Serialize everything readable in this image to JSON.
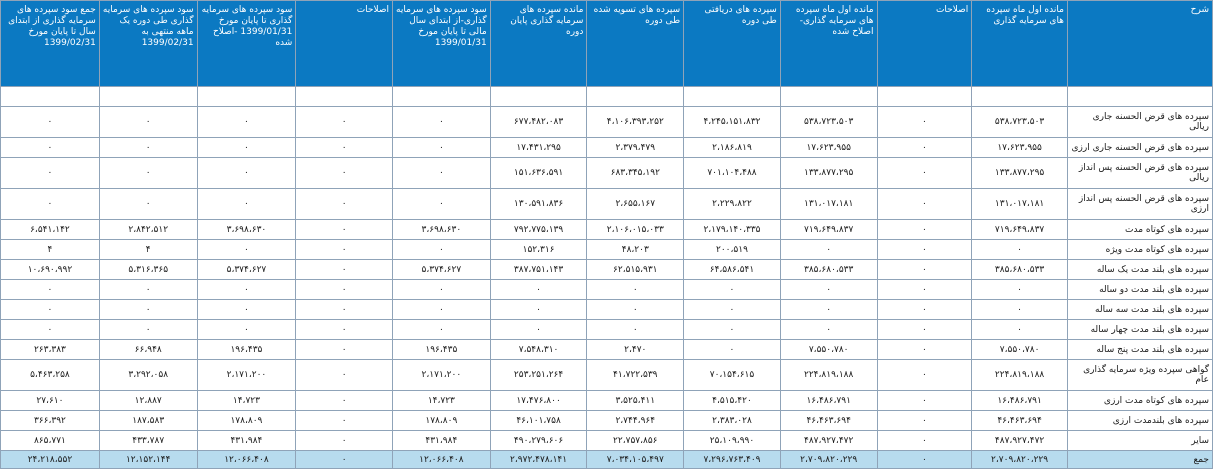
{
  "headers": [
    "شرح",
    "مانده اول ماه سپرده های سرمایه گذاری",
    "اصلاحات",
    "مانده اول ماه سپرده های سرمایه گذاری- اصلاح شده",
    "سپرده های دریافتی طی دوره",
    "سپرده های تسویه شده طی دوره",
    "مانده سپرده های سرمایه گذاری پایان دوره",
    "سود سپرده های سرمایه گذاری-از ابتدای سال مالی تا پایان مورخ 1399/01/31",
    "اصلاحات",
    "سود سپرده های سرمایه گذاری تا پایان مورخ 1399/01/31 -اصلاح شده",
    "سود سپرده های سرمایه گذاری طی دوره یک ماهه منتهی به 1399/02/31",
    "جمع سود سپرده های سرمایه گذاری از ابتدای سال تا پایان مورخ 1399/02/31"
  ],
  "rows": [
    [
      "سپرده های قرض الحسنه جاری ریالی",
      "۵۳۸،۷۲۳،۵۰۳",
      "۰",
      "۵۳۸،۷۲۳،۵۰۳",
      "۴،۲۴۵،۱۵۱،۸۳۲",
      "۴،۱۰۶،۳۹۳،۲۵۲",
      "۶۷۷،۴۸۲،۰۸۳",
      "۰",
      "۰",
      "۰",
      "۰",
      "۰"
    ],
    [
      "سپرده های قرض الحسنه جاری ارزی",
      "۱۷،۶۲۳،۹۵۵",
      "۰",
      "۱۷،۶۲۳،۹۵۵",
      "۲،۱۸۶،۸۱۹",
      "۲،۳۷۹،۴۷۹",
      "۱۷،۴۳۱،۲۹۵",
      "۰",
      "۰",
      "۰",
      "۰",
      "۰"
    ],
    [
      "سپرده های قرض الحسنه پس انداز ریالی",
      "۱۳۳،۸۷۷،۲۹۵",
      "۰",
      "۱۳۳،۸۷۷،۲۹۵",
      "۷۰۱،۱۰۴،۴۸۸",
      "۶۸۳،۳۴۵،۱۹۲",
      "۱۵۱،۶۳۶،۵۹۱",
      "۰",
      "۰",
      "۰",
      "۰",
      "۰"
    ],
    [
      "سپرده های قرض الحسنه پس انداز ارزی",
      "۱۳۱،۰۱۷،۱۸۱",
      "۰",
      "۱۳۱،۰۱۷،۱۸۱",
      "۲،۲۲۹،۸۲۲",
      "۲،۶۵۵،۱۶۷",
      "۱۳۰،۵۹۱،۸۳۶",
      "۰",
      "۰",
      "۰",
      "۰",
      "۰"
    ],
    [
      "سپرده های کوتاه مدت",
      "۷۱۹،۶۴۹،۸۳۷",
      "۰",
      "۷۱۹،۶۴۹،۸۳۷",
      "۲،۱۷۹،۱۴۰،۳۳۵",
      "۲،۱۰۶،۰۱۵،۰۳۳",
      "۷۹۲،۷۷۵،۱۳۹",
      "۳،۶۹۸،۶۳۰",
      "۰",
      "۳،۶۹۸،۶۳۰",
      "۲،۸۴۲،۵۱۲",
      "۶،۵۴۱،۱۴۲"
    ],
    [
      "سپرده های کوتاه مدت ویژه",
      "۰",
      "۰",
      "۰",
      "۲۰۰،۵۱۹",
      "۴۸،۲۰۳",
      "۱۵۲،۳۱۶",
      "۰",
      "۰",
      "۰",
      "۴",
      "۴"
    ],
    [
      "سپرده های بلند مدت یک ساله",
      "۳۸۵،۶۸۰،۵۳۳",
      "۰",
      "۳۸۵،۶۸۰،۵۳۳",
      "۶۴،۵۸۶،۵۴۱",
      "۶۲،۵۱۵،۹۳۱",
      "۳۸۷،۷۵۱،۱۴۳",
      "۵،۳۷۴،۶۲۷",
      "۰",
      "۵،۳۷۴،۶۲۷",
      "۵،۳۱۶،۳۶۵",
      "۱۰،۶۹۰،۹۹۲"
    ],
    [
      "سپرده های بلند مدت دو ساله",
      "۰",
      "۰",
      "۰",
      "۰",
      "۰",
      "۰",
      "۰",
      "۰",
      "۰",
      "۰",
      "۰"
    ],
    [
      "سپرده های بلند مدت سه ساله",
      "۰",
      "۰",
      "۰",
      "۰",
      "۰",
      "۰",
      "۰",
      "۰",
      "۰",
      "۰",
      "۰"
    ],
    [
      "سپرده های بلند مدت چهار ساله",
      "۰",
      "۰",
      "۰",
      "۰",
      "۰",
      "۰",
      "۰",
      "۰",
      "۰",
      "۰",
      "۰"
    ],
    [
      "سپرده های بلند مدت پنج ساله",
      "۷،۵۵۰،۷۸۰",
      "۰",
      "۷،۵۵۰،۷۸۰",
      "۰",
      "۲،۴۷۰",
      "۷،۵۴۸،۳۱۰",
      "۱۹۶،۴۳۵",
      "۰",
      "۱۹۶،۴۳۵",
      "۶۶،۹۴۸",
      "۲۶۳،۳۸۳"
    ],
    [
      "گواهی سپرده ویژه سرمایه گذاری عام",
      "۲۲۴،۸۱۹،۱۸۸",
      "۰",
      "۲۲۴،۸۱۹،۱۸۸",
      "۷۰،۱۵۴،۶۱۵",
      "۴۱،۷۲۲،۵۳۹",
      "۲۵۳،۲۵۱،۲۶۴",
      "۲،۱۷۱،۲۰۰",
      "۰",
      "۲،۱۷۱،۲۰۰",
      "۳،۲۹۲،۰۵۸",
      "۵،۴۶۳،۲۵۸"
    ],
    [
      "سپرده های کوتاه مدت ارزی",
      "۱۶،۴۸۶،۷۹۱",
      "۰",
      "۱۶،۴۸۶،۷۹۱",
      "۴،۵۱۵،۴۲۰",
      "۳،۵۲۵،۴۱۱",
      "۱۷،۴۷۶،۸۰۰",
      "۱۴،۷۲۳",
      "۰",
      "۱۴،۷۲۳",
      "۱۲،۸۸۷",
      "۲۷،۶۱۰"
    ],
    [
      "سپرده های بلندمدت ارزی",
      "۴۶،۴۶۳،۶۹۴",
      "۰",
      "۴۶،۴۶۳،۶۹۴",
      "۲،۳۸۳،۰۲۸",
      "۲،۷۴۴،۹۶۴",
      "۴۶،۱۰۱،۷۵۸",
      "۱۷۸،۸۰۹",
      "۰",
      "۱۷۸،۸۰۹",
      "۱۸۷،۵۸۳",
      "۳۶۶،۳۹۲"
    ],
    [
      "سایر",
      "۴۸۷،۹۲۷،۴۷۲",
      "۰",
      "۴۸۷،۹۲۷،۴۷۲",
      "۲۵،۱۰۹،۹۹۰",
      "۲۲،۷۵۷،۸۵۶",
      "۴۹۰،۲۷۹،۶۰۶",
      "۴۳۱،۹۸۴",
      "۰",
      "۴۳۱،۹۸۴",
      "۴۳۳،۷۸۷",
      "۸۶۵،۷۷۱"
    ]
  ],
  "total": [
    "جمع",
    "۲،۷۰۹،۸۲۰،۲۲۹",
    "۰",
    "۲،۷۰۹،۸۲۰،۲۲۹",
    "۷،۲۹۶،۷۶۳،۴۰۹",
    "۷،۰۳۴،۱۰۵،۴۹۷",
    "۲،۹۷۲،۴۷۸،۱۴۱",
    "۱۲،۰۶۶،۴۰۸",
    "۰",
    "۱۲،۰۶۶،۴۰۸",
    "۱۲،۱۵۲،۱۴۴",
    "۲۴،۲۱۸،۵۵۲"
  ],
  "tall_rows": [
    0,
    2,
    3,
    11
  ]
}
